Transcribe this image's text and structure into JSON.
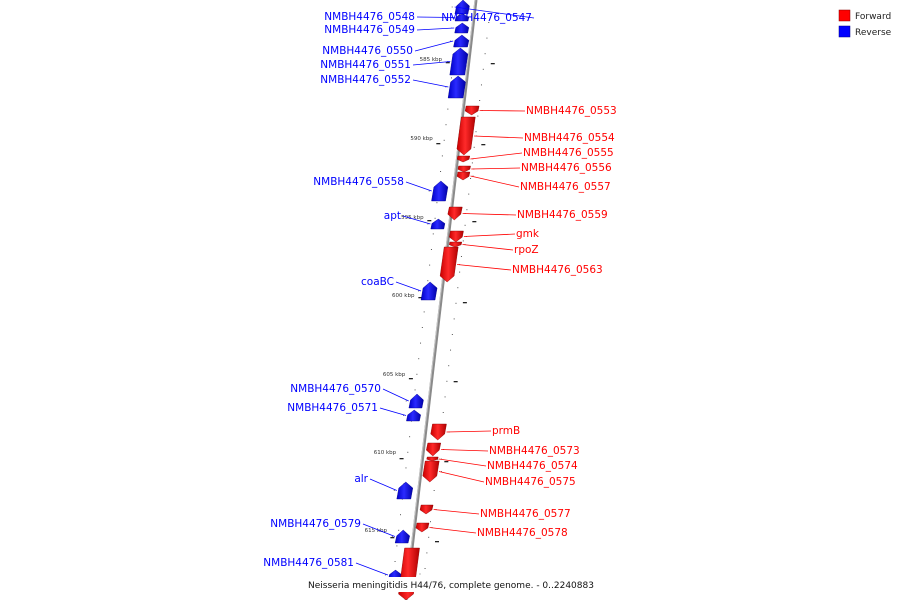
{
  "legend": {
    "forward_label": "Forward",
    "reverse_label": "Reverse",
    "forward_color": "#ff0000",
    "reverse_color": "#0000ff"
  },
  "caption": "Neisseria meningitidis H44/76, complete genome. - 0..2240883",
  "scale_marks": [
    "585 kbp",
    "590 kbp",
    "595 kbp",
    "600 kbp",
    "605 kbp",
    "610 kbp",
    "615 kbp"
  ],
  "genes": [
    {
      "name": "NMBH4476_0547",
      "strand": "reverse"
    },
    {
      "name": "NMBH4476_0548",
      "strand": "reverse"
    },
    {
      "name": "NMBH4476_0549",
      "strand": "reverse"
    },
    {
      "name": "NMBH4476_0550",
      "strand": "reverse"
    },
    {
      "name": "NMBH4476_0551",
      "strand": "reverse"
    },
    {
      "name": "NMBH4476_0552",
      "strand": "reverse"
    },
    {
      "name": "NMBH4476_0553",
      "strand": "forward"
    },
    {
      "name": "NMBH4476_0554",
      "strand": "forward"
    },
    {
      "name": "NMBH4476_0555",
      "strand": "forward"
    },
    {
      "name": "NMBH4476_0556",
      "strand": "forward"
    },
    {
      "name": "NMBH4476_0557",
      "strand": "forward"
    },
    {
      "name": "NMBH4476_0558",
      "strand": "reverse"
    },
    {
      "name": "NMBH4476_0559",
      "strand": "forward"
    },
    {
      "name": "apt",
      "strand": "reverse"
    },
    {
      "name": "gmk",
      "strand": "forward"
    },
    {
      "name": "rpoZ",
      "strand": "forward"
    },
    {
      "name": "NMBH4476_0563",
      "strand": "forward"
    },
    {
      "name": "coaBC",
      "strand": "reverse"
    },
    {
      "name": "NMBH4476_0570",
      "strand": "reverse"
    },
    {
      "name": "NMBH4476_0571",
      "strand": "reverse"
    },
    {
      "name": "prmB",
      "strand": "forward"
    },
    {
      "name": "NMBH4476_0573",
      "strand": "forward"
    },
    {
      "name": "NMBH4476_0574",
      "strand": "forward"
    },
    {
      "name": "NMBH4476_0575",
      "strand": "forward"
    },
    {
      "name": "alr",
      "strand": "reverse"
    },
    {
      "name": "NMBH4476_0577",
      "strand": "forward"
    },
    {
      "name": "NMBH4476_0578",
      "strand": "forward"
    },
    {
      "name": "NMBH4476_0579",
      "strand": "reverse"
    },
    {
      "name": "NMBH4476_0581",
      "strand": "reverse"
    },
    {
      "name": "",
      "strand": "forward"
    }
  ]
}
